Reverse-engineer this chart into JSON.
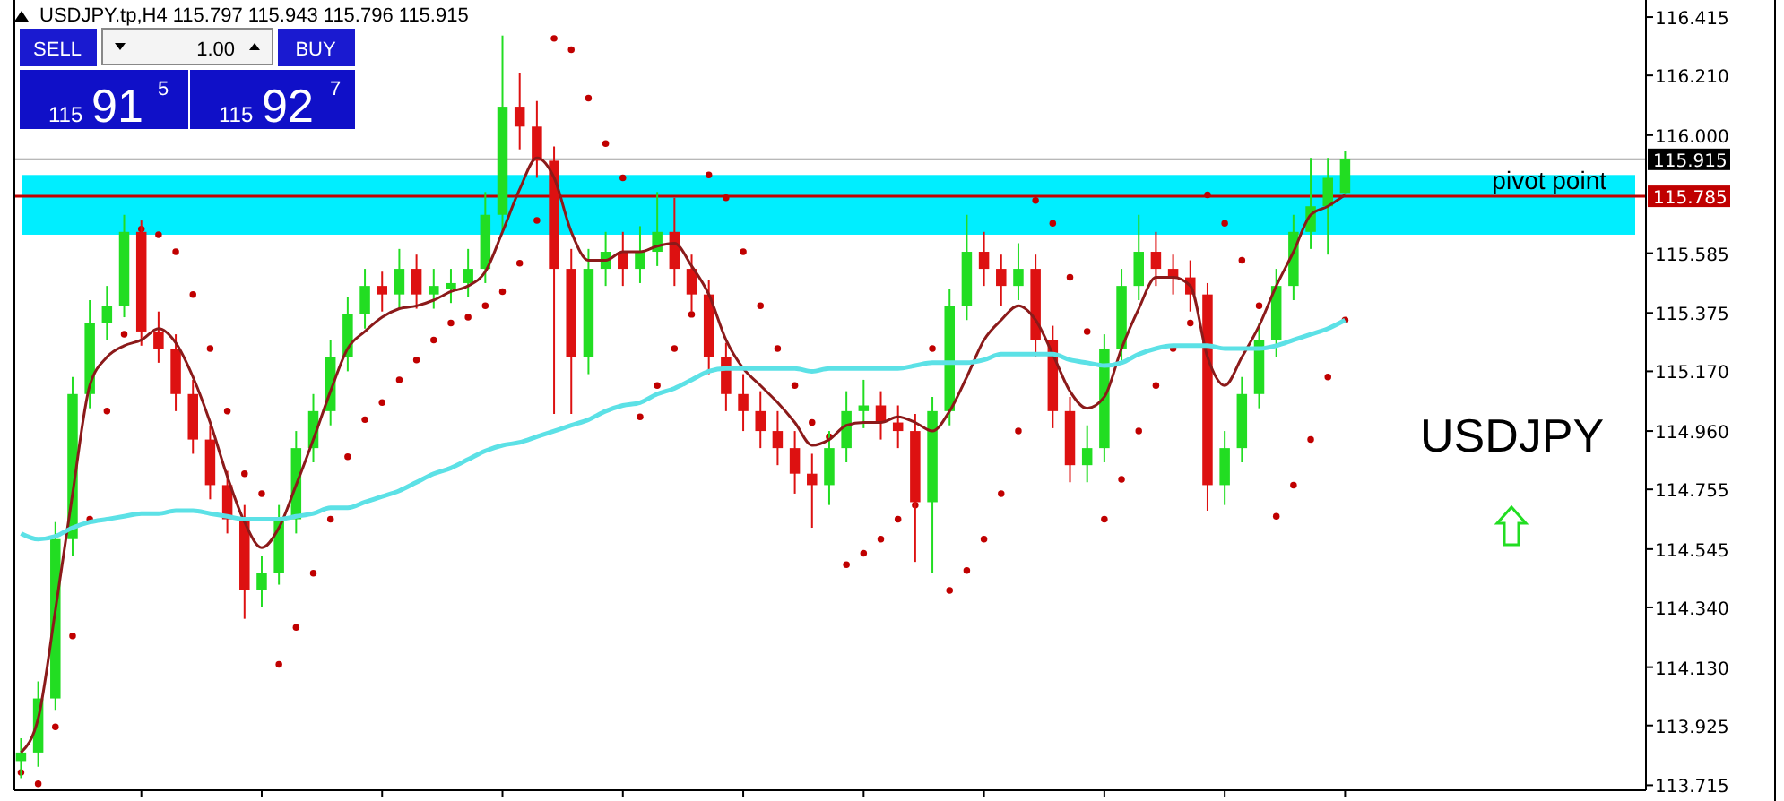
{
  "chart_data": {
    "type": "candlestick",
    "tick_labels": "y",
    "grid": false,
    "annotations": [
      "USDJPY.tp,H4  115.797 115.943 115.796 115.915",
      "SELL",
      "1.00",
      "BUY",
      "115",
      "91",
      "5",
      "115",
      "92",
      "7",
      "USDJPY",
      "115.915",
      "115.785"
    ],
    "ylim": [
      113.71,
      116.475
    ],
    "yticks": [
      116.415,
      {
        "value": 116.21,
        "label": "116.210"
      },
      {
        "value": 116.0,
        "label": "116.000"
      },
      115.585,
      115.375,
      {
        "value": 115.17,
        "label": "115.170"
      },
      {
        "value": 114.96,
        "label": "114.960"
      },
      114.755,
      114.545,
      {
        "value": 114.34,
        "label": "114.340"
      },
      {
        "value": 114.13,
        "label": "114.130"
      },
      113.925,
      113.715
    ],
    "categories": [
      null,
      null,
      null,
      null,
      null,
      null,
      null,
      null,
      null,
      null,
      null,
      null,
      null,
      null,
      null,
      null,
      null,
      null,
      null,
      null,
      null,
      null,
      null,
      null,
      null,
      null,
      null,
      null,
      null,
      null,
      null,
      null,
      null,
      null,
      null,
      null,
      null,
      null,
      null,
      null,
      null,
      null,
      null,
      null,
      null,
      null,
      null,
      null,
      null,
      null,
      null,
      null,
      null,
      null,
      null,
      null,
      null,
      null,
      null,
      null,
      null,
      null,
      null,
      null,
      null,
      null,
      null,
      null,
      null,
      null,
      null,
      null,
      null,
      null,
      null,
      null,
      null,
      null
    ],
    "ohlc": [
      [
        113.8,
        113.88,
        113.74,
        113.83
      ],
      [
        113.83,
        114.08,
        113.78,
        114.02
      ],
      [
        114.02,
        114.64,
        113.98,
        114.58
      ],
      [
        114.58,
        115.15,
        114.52,
        115.09
      ],
      [
        115.09,
        115.42,
        115.04,
        115.34
      ],
      [
        115.34,
        115.47,
        115.28,
        115.4
      ],
      [
        115.4,
        115.72,
        115.36,
        115.66
      ],
      [
        115.66,
        115.7,
        115.26,
        115.31
      ],
      [
        115.31,
        115.38,
        115.2,
        115.25
      ],
      [
        115.25,
        115.3,
        115.03,
        115.09
      ],
      [
        115.09,
        115.14,
        114.88,
        114.93
      ],
      [
        114.93,
        114.98,
        114.72,
        114.77
      ],
      [
        114.77,
        114.82,
        114.6,
        114.65
      ],
      [
        114.65,
        114.7,
        114.3,
        114.4
      ],
      [
        114.4,
        114.52,
        114.34,
        114.46
      ],
      [
        114.46,
        114.7,
        114.42,
        114.65
      ],
      [
        114.65,
        114.96,
        114.6,
        114.9
      ],
      [
        114.9,
        115.09,
        114.85,
        115.03
      ],
      [
        115.03,
        115.28,
        114.98,
        115.22
      ],
      [
        115.22,
        115.43,
        115.17,
        115.37
      ],
      [
        115.37,
        115.53,
        115.32,
        115.47
      ],
      [
        115.47,
        115.52,
        115.38,
        115.44
      ],
      [
        115.44,
        115.6,
        115.39,
        115.53
      ],
      [
        115.53,
        115.58,
        115.39,
        115.44
      ],
      [
        115.44,
        115.53,
        115.39,
        115.47
      ],
      [
        115.46,
        115.53,
        115.41,
        115.48
      ],
      [
        115.48,
        115.6,
        115.43,
        115.53
      ],
      [
        115.53,
        115.8,
        115.48,
        115.72
      ],
      [
        115.72,
        116.35,
        115.66,
        116.1
      ],
      [
        116.1,
        116.22,
        115.95,
        116.03
      ],
      [
        116.03,
        116.12,
        115.85,
        115.91
      ],
      [
        115.91,
        115.96,
        115.02,
        115.53
      ],
      [
        115.53,
        115.6,
        115.02,
        115.22
      ],
      [
        115.22,
        115.6,
        115.16,
        115.53
      ],
      [
        115.53,
        115.66,
        115.47,
        115.59
      ],
      [
        115.59,
        115.66,
        115.47,
        115.53
      ],
      [
        115.53,
        115.68,
        115.48,
        115.59
      ],
      [
        115.59,
        115.8,
        115.54,
        115.66
      ],
      [
        115.66,
        115.78,
        115.47,
        115.53
      ],
      [
        115.53,
        115.58,
        115.38,
        115.44
      ],
      [
        115.44,
        115.49,
        115.16,
        115.22
      ],
      [
        115.22,
        115.27,
        115.03,
        115.09
      ],
      [
        115.09,
        115.16,
        114.96,
        115.03
      ],
      [
        115.03,
        115.1,
        114.9,
        114.96
      ],
      [
        114.96,
        115.03,
        114.84,
        114.9
      ],
      [
        114.9,
        114.96,
        114.74,
        114.81
      ],
      [
        114.81,
        114.88,
        114.62,
        114.77
      ],
      [
        114.77,
        114.96,
        114.7,
        114.9
      ],
      [
        114.9,
        115.1,
        114.85,
        115.03
      ],
      [
        115.03,
        115.14,
        114.97,
        115.05
      ],
      [
        115.05,
        115.1,
        114.93,
        114.99
      ],
      [
        114.99,
        115.05,
        114.9,
        114.96
      ],
      [
        114.96,
        115.02,
        114.5,
        114.71
      ],
      [
        114.71,
        115.08,
        114.46,
        115.03
      ],
      [
        115.03,
        115.46,
        114.98,
        115.4
      ],
      [
        115.4,
        115.72,
        115.35,
        115.59
      ],
      [
        115.59,
        115.66,
        115.47,
        115.53
      ],
      [
        115.53,
        115.58,
        115.4,
        115.47
      ],
      [
        115.47,
        115.62,
        115.42,
        115.53
      ],
      [
        115.53,
        115.58,
        115.22,
        115.28
      ],
      [
        115.28,
        115.33,
        114.97,
        115.03
      ],
      [
        115.03,
        115.08,
        114.78,
        114.84
      ],
      [
        114.84,
        114.98,
        114.78,
        114.9
      ],
      [
        114.9,
        115.3,
        114.85,
        115.25
      ],
      [
        115.25,
        115.53,
        115.2,
        115.47
      ],
      [
        115.47,
        115.72,
        115.42,
        115.59
      ],
      [
        115.59,
        115.66,
        115.47,
        115.53
      ],
      [
        115.53,
        115.58,
        115.44,
        115.5
      ],
      [
        115.5,
        115.56,
        115.38,
        115.44
      ],
      [
        115.44,
        115.48,
        114.68,
        114.77
      ],
      [
        114.77,
        114.96,
        114.7,
        114.9
      ],
      [
        114.9,
        115.15,
        114.85,
        115.09
      ],
      [
        115.09,
        115.34,
        115.04,
        115.28
      ],
      [
        115.28,
        115.53,
        115.22,
        115.47
      ],
      [
        115.47,
        115.72,
        115.42,
        115.66
      ],
      [
        115.66,
        115.92,
        115.6,
        115.75
      ],
      [
        115.75,
        115.92,
        115.58,
        115.85
      ],
      [
        115.797,
        115.943,
        115.796,
        115.915
      ]
    ],
    "series": [
      {
        "type": "line",
        "color": "#8b1a1a",
        "values": [
          113.83,
          113.95,
          114.33,
          114.74,
          115.12,
          115.22,
          115.26,
          115.28,
          115.32,
          115.27,
          115.15,
          114.99,
          114.8,
          114.64,
          114.55,
          114.62,
          114.77,
          114.93,
          115.1,
          115.25,
          115.31,
          115.36,
          115.39,
          115.4,
          115.42,
          115.45,
          115.47,
          115.52,
          115.66,
          115.81,
          115.92,
          115.85,
          115.66,
          115.56,
          115.56,
          115.59,
          115.59,
          115.61,
          115.62,
          115.54,
          115.44,
          115.28,
          115.18,
          115.12,
          115.06,
          114.99,
          114.91,
          114.93,
          114.98,
          114.99,
          114.99,
          115.01,
          114.99,
          114.96,
          115.03,
          115.15,
          115.28,
          115.35,
          115.4,
          115.35,
          115.23,
          115.1,
          115.04,
          115.08,
          115.25,
          115.39,
          115.5,
          115.5,
          115.47,
          115.22,
          115.12,
          115.22,
          115.33,
          115.47,
          115.59,
          115.72,
          115.75,
          115.79
        ]
      },
      {
        "type": "line",
        "color": "#5ce1e6",
        "values": [
          114.6,
          114.58,
          114.59,
          114.62,
          114.64,
          114.65,
          114.66,
          114.67,
          114.67,
          114.68,
          114.68,
          114.67,
          114.66,
          114.65,
          114.65,
          114.65,
          114.66,
          114.67,
          114.69,
          114.69,
          114.71,
          114.73,
          114.75,
          114.78,
          114.81,
          114.83,
          114.86,
          114.89,
          114.91,
          114.92,
          114.94,
          114.96,
          114.98,
          115.0,
          115.03,
          115.05,
          115.06,
          115.09,
          115.11,
          115.14,
          115.17,
          115.18,
          115.18,
          115.18,
          115.18,
          115.18,
          115.17,
          115.18,
          115.18,
          115.18,
          115.18,
          115.18,
          115.19,
          115.2,
          115.2,
          115.2,
          115.21,
          115.23,
          115.23,
          115.23,
          115.23,
          115.21,
          115.2,
          115.19,
          115.2,
          115.23,
          115.25,
          115.26,
          115.26,
          115.26,
          115.25,
          115.25,
          115.25,
          115.26,
          115.28,
          115.3,
          115.32,
          115.35
        ]
      },
      {
        "type": "scatter",
        "marker": "circle",
        "color": "#c00000",
        "values": [
          113.76,
          113.72,
          113.92,
          114.24,
          114.65,
          115.03,
          115.3,
          115.67,
          115.65,
          115.59,
          115.44,
          115.25,
          115.03,
          114.81,
          114.74,
          114.14,
          114.27,
          114.46,
          114.65,
          114.87,
          115.0,
          115.06,
          115.14,
          115.21,
          115.28,
          115.34,
          115.36,
          115.4,
          115.45,
          115.55,
          115.7,
          116.34,
          116.3,
          116.13,
          115.97,
          115.85,
          115.01,
          115.12,
          115.25,
          115.37,
          115.86,
          115.78,
          115.59,
          115.4,
          115.25,
          115.12,
          114.99,
          114.94,
          114.49,
          114.53,
          114.58,
          114.65,
          114.7,
          115.25,
          114.4,
          114.47,
          114.58,
          114.74,
          114.96,
          115.77,
          115.69,
          115.5,
          115.31,
          114.65,
          114.79,
          114.96,
          115.12,
          115.25,
          115.34,
          115.79,
          115.69,
          115.56,
          115.4,
          114.66,
          114.77,
          114.93,
          115.15,
          115.35
        ]
      }
    ],
    "bands": [
      {
        "axis": "y",
        "from": 115.65,
        "to": 115.86,
        "color": "#00eeff"
      }
    ],
    "ref_lines": [
      {
        "axis": "y",
        "value": 115.915,
        "color": "#a0a0a0"
      },
      {
        "axis": "y",
        "value": 115.785,
        "label": "pivot point",
        "color": "#c00000"
      }
    ]
  }
}
